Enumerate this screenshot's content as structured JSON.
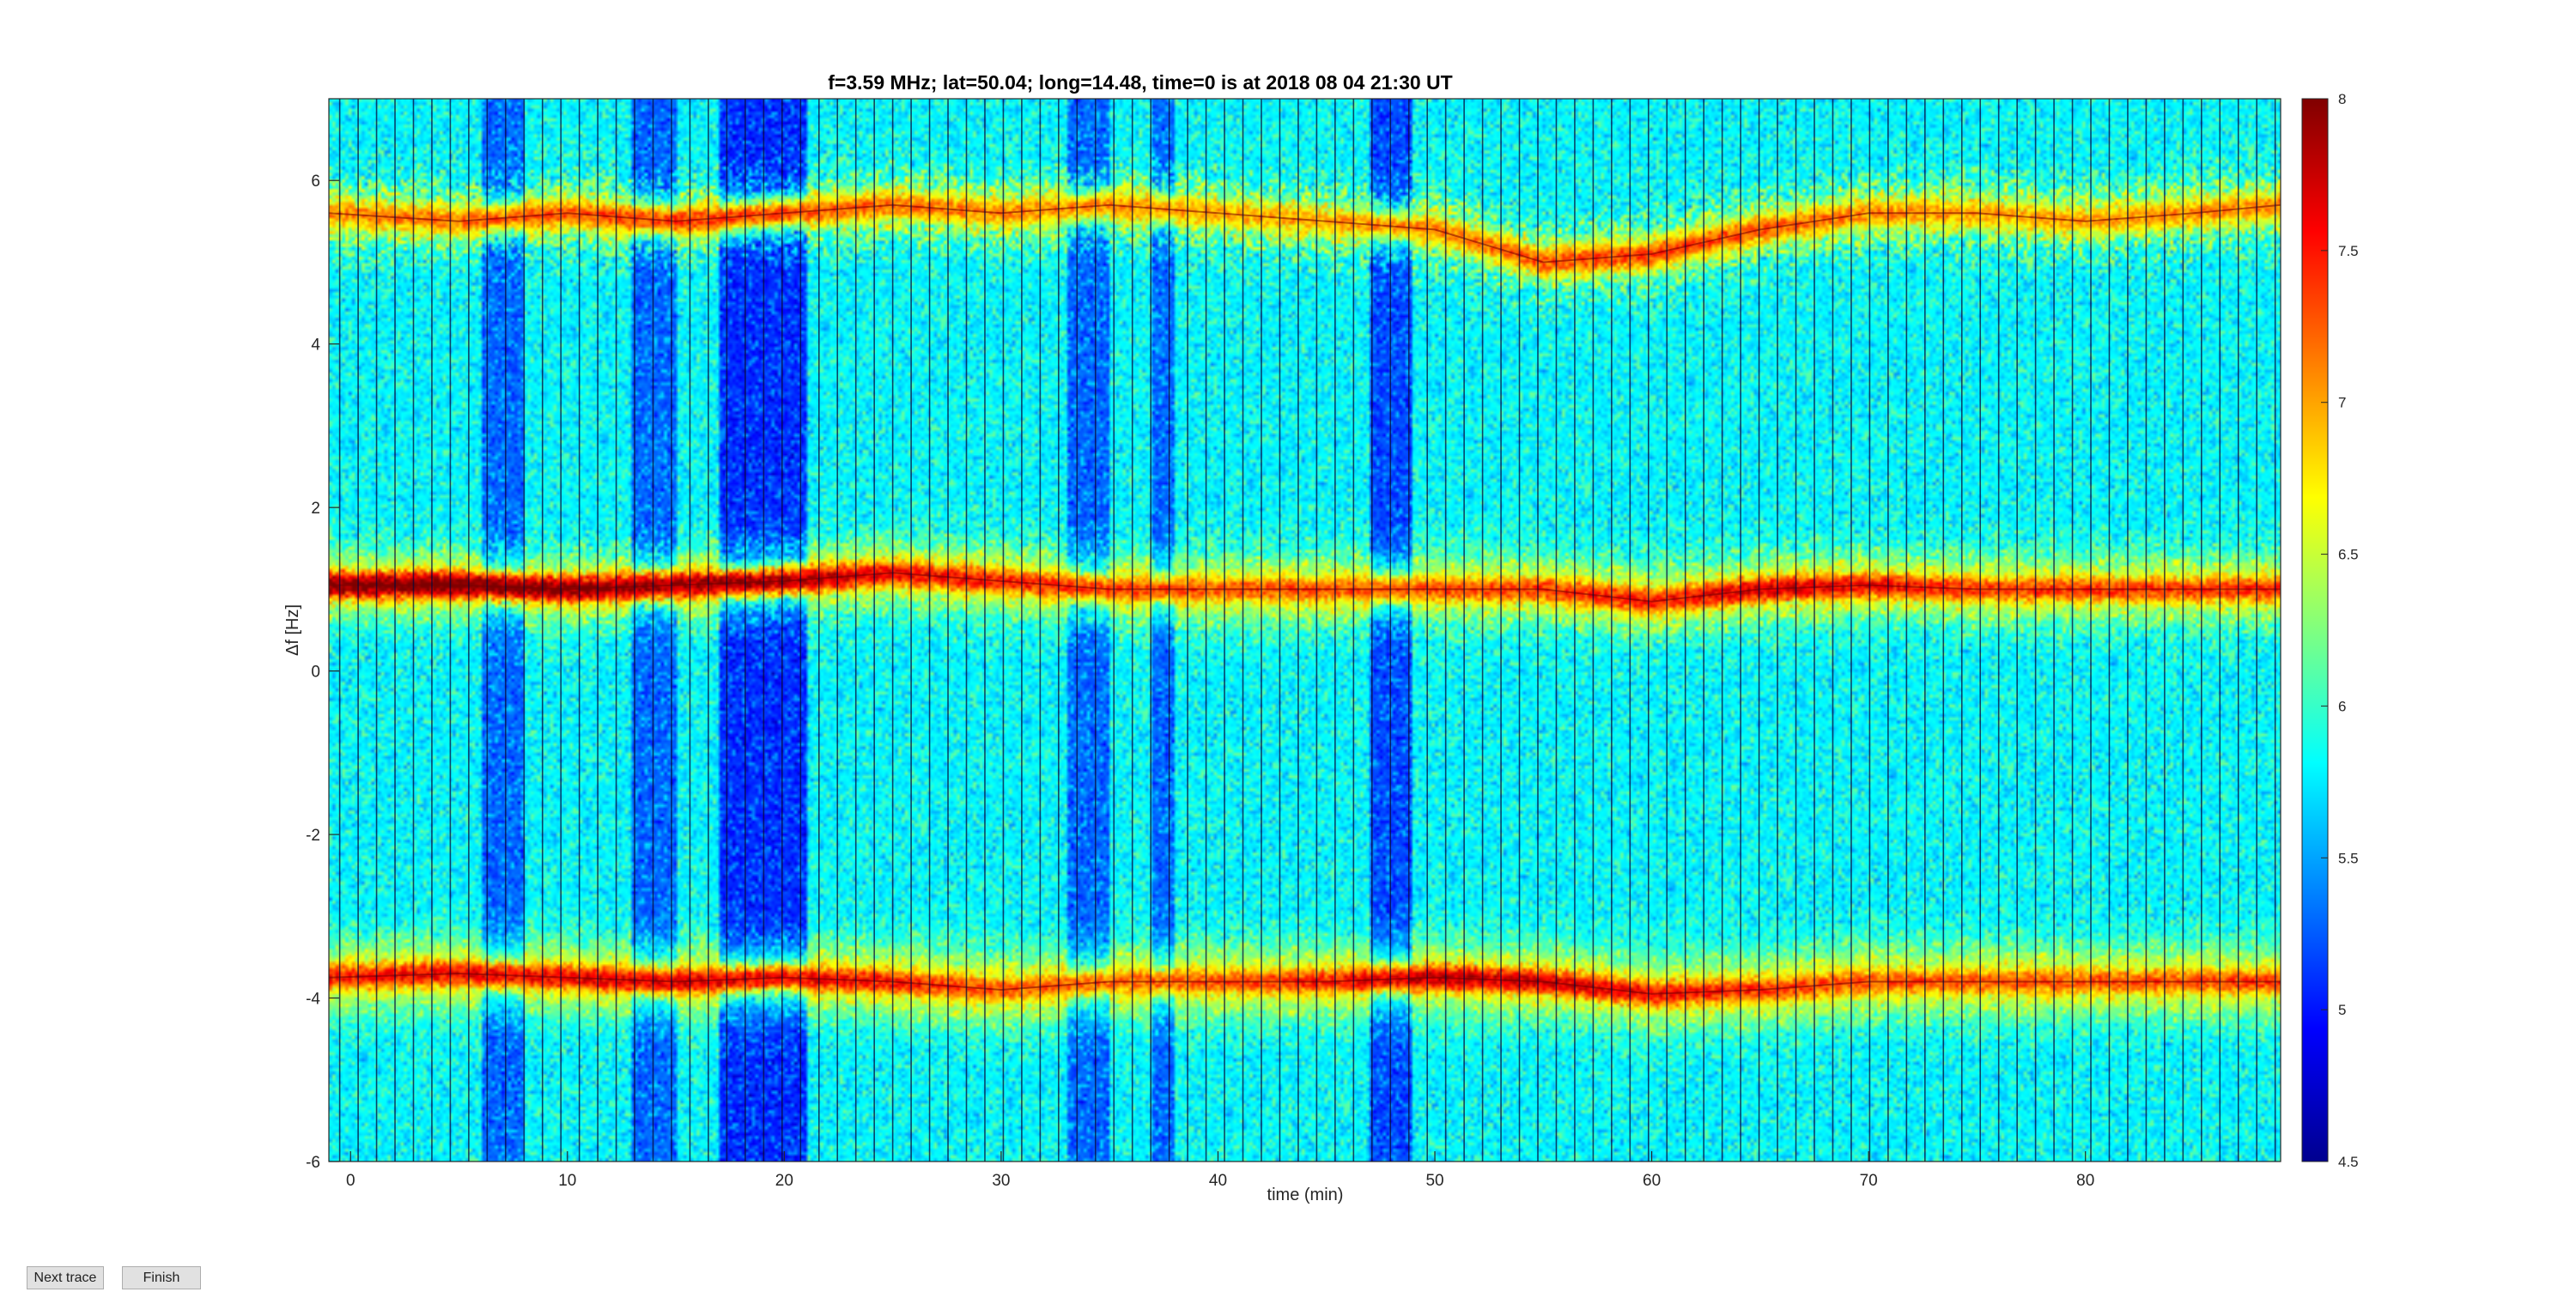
{
  "buttons": {
    "next_trace": "Next trace",
    "finish": "Finish"
  },
  "chart_data": {
    "type": "heatmap",
    "title": "f=3.59 MHz;  lat=50.04; long=14.48, time=0 is at 2018 08 04 21:30 UT",
    "xlabel": "time (min)",
    "ylabel": "Δf [Hz]",
    "xlim": [
      -1,
      89
    ],
    "ylim": [
      -6,
      7
    ],
    "xticks": [
      0,
      10,
      20,
      30,
      40,
      50,
      60,
      70,
      80
    ],
    "yticks": [
      -6,
      -4,
      -2,
      0,
      2,
      4,
      6
    ],
    "colorbar": {
      "colormap": "jet",
      "range": [
        4.5,
        8
      ],
      "ticks": [
        4.5,
        5,
        5.5,
        6,
        6.5,
        7,
        7.5,
        8
      ]
    },
    "traces": [
      {
        "name": "band near +5.6 Hz",
        "x": [
          -1,
          5,
          10,
          15,
          20,
          25,
          30,
          35,
          40,
          45,
          50,
          55,
          60,
          65,
          70,
          75,
          80,
          85,
          89
        ],
        "y": [
          5.6,
          5.5,
          5.6,
          5.5,
          5.6,
          5.7,
          5.6,
          5.7,
          5.6,
          5.5,
          5.4,
          5.0,
          5.1,
          5.4,
          5.6,
          5.6,
          5.5,
          5.6,
          5.7
        ],
        "intensity": [
          7.0,
          7.1,
          7.2,
          7.3,
          7.2,
          7.1,
          7.0,
          7.0,
          6.9,
          6.9,
          7.0,
          7.2,
          7.3,
          7.2,
          7.0,
          6.9,
          6.9,
          7.0,
          7.0
        ]
      },
      {
        "name": "band near +1.0 Hz",
        "x": [
          -1,
          5,
          10,
          15,
          20,
          25,
          30,
          35,
          40,
          45,
          50,
          55,
          60,
          65,
          70,
          75,
          80,
          85,
          89
        ],
        "y": [
          1.05,
          1.05,
          1.0,
          1.05,
          1.1,
          1.2,
          1.1,
          1.0,
          1.0,
          1.0,
          1.0,
          1.0,
          0.85,
          1.0,
          1.05,
          1.0,
          1.0,
          1.0,
          1.0
        ],
        "intensity": [
          7.9,
          8.0,
          7.9,
          7.8,
          7.8,
          7.5,
          7.4,
          7.3,
          7.2,
          7.2,
          7.2,
          7.3,
          7.4,
          7.6,
          7.5,
          7.3,
          7.3,
          7.3,
          7.4
        ]
      },
      {
        "name": "band near -3.8 Hz",
        "x": [
          -1,
          5,
          10,
          15,
          20,
          25,
          30,
          35,
          40,
          45,
          50,
          55,
          60,
          65,
          70,
          75,
          80,
          85,
          89
        ],
        "y": [
          -3.75,
          -3.7,
          -3.75,
          -3.8,
          -3.75,
          -3.8,
          -3.9,
          -3.8,
          -3.8,
          -3.8,
          -3.75,
          -3.8,
          -3.95,
          -3.9,
          -3.8,
          -3.8,
          -3.8,
          -3.8,
          -3.8
        ],
        "intensity": [
          7.4,
          7.5,
          7.5,
          7.6,
          7.5,
          7.4,
          7.2,
          7.1,
          7.2,
          7.4,
          7.7,
          7.6,
          7.5,
          7.3,
          7.2,
          7.2,
          7.2,
          7.2,
          7.3
        ]
      }
    ],
    "background": {
      "low_intensity_regions": [
        {
          "x_range": [
            6,
            8
          ],
          "level": 5.0
        },
        {
          "x_range": [
            13,
            15
          ],
          "level": 5.0
        },
        {
          "x_range": [
            17,
            21
          ],
          "level": 4.8
        },
        {
          "x_range": [
            33,
            35
          ],
          "level": 5.0
        },
        {
          "x_range": [
            37,
            38
          ],
          "level": 5.0
        },
        {
          "x_range": [
            47,
            49
          ],
          "level": 4.9
        }
      ],
      "typical_level": 5.5
    },
    "grid": false,
    "legend": "none"
  }
}
